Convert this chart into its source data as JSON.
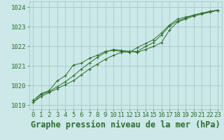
{
  "title": "Graphe pression niveau de la mer (hPa)",
  "bg_color": "#cce8e8",
  "grid_color": "#a0c4c4",
  "line_color": "#2d6e2d",
  "marker_color": "#2d6e2d",
  "x_values": [
    0,
    1,
    2,
    3,
    4,
    5,
    6,
    7,
    8,
    9,
    10,
    11,
    12,
    13,
    14,
    15,
    16,
    17,
    18,
    19,
    20,
    21,
    22,
    23
  ],
  "series1": [
    1019.15,
    1019.45,
    1019.65,
    1019.85,
    1020.05,
    1020.25,
    1020.55,
    1020.85,
    1021.1,
    1021.35,
    1021.55,
    1021.7,
    1021.75,
    1021.7,
    1021.85,
    1022.0,
    1022.2,
    1022.85,
    1023.25,
    1023.4,
    1023.55,
    1023.65,
    1023.75,
    1023.85
  ],
  "series2": [
    1019.15,
    1019.55,
    1019.7,
    1019.95,
    1020.2,
    1020.5,
    1020.85,
    1021.15,
    1021.45,
    1021.7,
    1021.85,
    1021.8,
    1021.75,
    1021.75,
    1022.0,
    1022.2,
    1022.6,
    1023.05,
    1023.3,
    1023.45,
    1023.6,
    1023.7,
    1023.8,
    1023.85
  ],
  "series3": [
    1019.25,
    1019.6,
    1019.75,
    1020.25,
    1020.5,
    1021.05,
    1021.15,
    1021.4,
    1021.55,
    1021.75,
    1021.8,
    1021.75,
    1021.7,
    1021.95,
    1022.15,
    1022.35,
    1022.7,
    1023.1,
    1023.4,
    1023.5,
    1023.6,
    1023.7,
    1023.75,
    1023.85
  ],
  "ylim": [
    1018.8,
    1024.3
  ],
  "xlim": [
    -0.5,
    23.5
  ],
  "yticks": [
    1019,
    1020,
    1021,
    1022,
    1023,
    1024
  ],
  "xticks": [
    0,
    1,
    2,
    3,
    4,
    5,
    6,
    7,
    8,
    9,
    10,
    11,
    12,
    13,
    14,
    15,
    16,
    17,
    18,
    19,
    20,
    21,
    22,
    23
  ],
  "title_fontsize": 8.5,
  "tick_fontsize": 6.5,
  "title_color": "#2d6e2d",
  "figsize": [
    3.2,
    2.0
  ],
  "dpi": 100
}
